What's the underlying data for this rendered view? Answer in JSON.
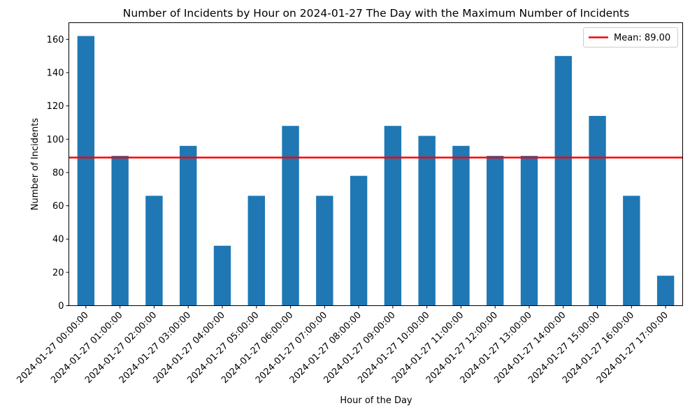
{
  "chart_data": {
    "type": "bar",
    "title": "Number of Incidents by Hour on 2024-01-27 The Day with the Maximum Number of Incidents",
    "xlabel": "Hour of the Day",
    "ylabel": "Number of Incidents",
    "categories": [
      "2024-01-27 00:00:00",
      "2024-01-27 01:00:00",
      "2024-01-27 02:00:00",
      "2024-01-27 03:00:00",
      "2024-01-27 04:00:00",
      "2024-01-27 05:00:00",
      "2024-01-27 06:00:00",
      "2024-01-27 07:00:00",
      "2024-01-27 08:00:00",
      "2024-01-27 09:00:00",
      "2024-01-27 10:00:00",
      "2024-01-27 11:00:00",
      "2024-01-27 12:00:00",
      "2024-01-27 13:00:00",
      "2024-01-27 14:00:00",
      "2024-01-27 15:00:00",
      "2024-01-27 16:00:00",
      "2024-01-27 17:00:00"
    ],
    "values": [
      162,
      90,
      66,
      96,
      36,
      66,
      108,
      66,
      78,
      108,
      102,
      96,
      90,
      90,
      150,
      114,
      66,
      18
    ],
    "ylim": [
      0,
      170
    ],
    "yticks": [
      0,
      20,
      40,
      60,
      80,
      100,
      120,
      140,
      160
    ],
    "bar_color": "#1f77b4",
    "mean_line": {
      "value": 89.0,
      "label": "Mean: 89.00",
      "color": "#ff0000"
    },
    "legend_position": "top-right",
    "grid": false
  }
}
